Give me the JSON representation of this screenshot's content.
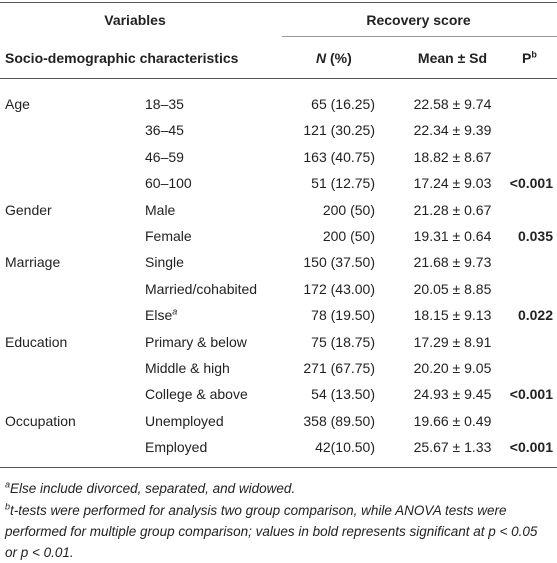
{
  "header": {
    "variables": "Variables",
    "recovery_score": "Recovery score",
    "characteristics": "Socio-demographic characteristics",
    "n_italic": "N",
    "n_rest": "(%)",
    "mean": "Mean ± Sd",
    "p": "P",
    "p_sup": "b"
  },
  "table": {
    "rows": [
      {
        "group": "Age",
        "level": "18–35",
        "n": "65 (16.25)",
        "mean": "22.58 ± 9.74"
      },
      {
        "level": "36–45",
        "n": "121 (30.25)",
        "mean": "22.34 ± 9.39"
      },
      {
        "level": "46–59",
        "n": "163 (40.75)",
        "mean": "18.82 ± 8.67"
      },
      {
        "level": "60–100",
        "n": "51 (12.75)",
        "mean": "17.24 ± 9.03",
        "p": "<0.001"
      },
      {
        "group": "Gender",
        "level": "Male",
        "n": "200 (50)",
        "mean": "21.28 ± 0.67"
      },
      {
        "level": "Female",
        "n": "200 (50)",
        "mean": "19.31 ± 0.64",
        "p": "0.035"
      },
      {
        "group": "Marriage",
        "level": "Single",
        "n": "150 (37.50)",
        "mean": "21.68 ± 9.73"
      },
      {
        "level": "Married/cohabited",
        "n": "172 (43.00)",
        "mean": "20.05 ± 8.85"
      },
      {
        "level": "Else",
        "level_sup": "a",
        "n": "78 (19.50)",
        "mean": "18.15 ± 9.13",
        "p": "0.022"
      },
      {
        "group": "Education",
        "level": "Primary & below",
        "n": "75 (18.75)",
        "mean": "17.29 ± 8.91"
      },
      {
        "level": "Middle & high",
        "n": "271 (67.75)",
        "mean": "20.20 ± 9.05"
      },
      {
        "level": "College & above",
        "n": "54 (13.50)",
        "mean": "24.93 ± 9.45",
        "p": "<0.001"
      },
      {
        "group": "Occupation",
        "level": "Unemployed",
        "n": "358 (89.50)",
        "mean": "19.66 ± 0.49"
      },
      {
        "level": "Employed",
        "n": "42(10.50)",
        "mean": "25.67 ± 1.33",
        "p": "<0.001"
      }
    ]
  },
  "footnotes": [
    {
      "marker": "a",
      "text": "Else include divorced, separated, and widowed."
    },
    {
      "marker": "b",
      "text": "t-tests were performed for analysis two group comparison, while ANOVA tests were performed for multiple group comparison; values in bold represents significant at p < 0.05 or p < 0.01."
    }
  ]
}
